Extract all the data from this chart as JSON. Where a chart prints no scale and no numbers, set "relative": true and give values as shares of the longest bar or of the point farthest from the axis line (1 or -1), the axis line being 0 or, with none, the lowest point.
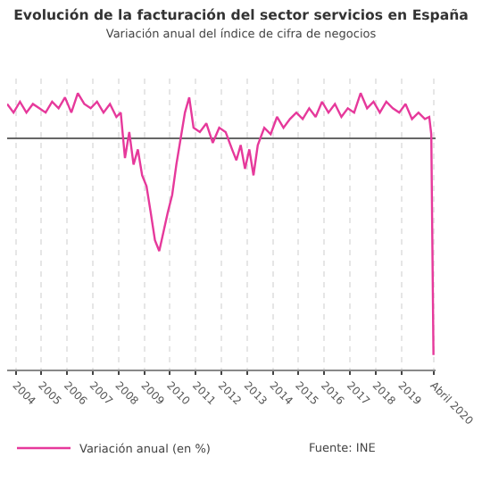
{
  "chart_data": {
    "type": "line",
    "title": "Evolución de la facturación del sector servicios en España",
    "subtitle": "Variación anual del índice de cifra de negocios",
    "relative": true,
    "grid": "x",
    "legend": "bottom",
    "marker": "none",
    "line_style": "solid",
    "annotations": [
      "Fuente: INE"
    ],
    "xlim": [
      "2003-09",
      "2020-05"
    ],
    "xticks": [
      {
        "value": "2004-01",
        "label": "2004"
      },
      {
        "value": "2005-01",
        "label": "2005"
      },
      {
        "value": "2006-01",
        "label": "2006"
      },
      {
        "value": "2007-01",
        "label": "2007"
      },
      {
        "value": "2008-01",
        "label": "2008"
      },
      {
        "value": "2009-01",
        "label": "2009"
      },
      {
        "value": "2010-01",
        "label": "2010"
      },
      {
        "value": "2011-01",
        "label": "2011"
      },
      {
        "value": "2012-01",
        "label": "2012"
      },
      {
        "value": "2013-01",
        "label": "2013"
      },
      {
        "value": "2014-01",
        "label": "2014"
      },
      {
        "value": "2015-01",
        "label": "2015"
      },
      {
        "value": "2016-01",
        "label": "2016"
      },
      {
        "value": "2017-01",
        "label": "2017"
      },
      {
        "value": "2018-01",
        "label": "2018"
      },
      {
        "value": "2019-01",
        "label": "2019"
      },
      {
        "value": "2020-04",
        "label": "Abril 2020"
      }
    ],
    "series": [
      {
        "name": "Variación anual (en %)",
        "color": "#e6399b",
        "x": [
          "2003-09",
          "2003-12",
          "2004-03",
          "2004-06",
          "2004-09",
          "2004-12",
          "2005-03",
          "2005-06",
          "2005-09",
          "2005-12",
          "2006-03",
          "2006-06",
          "2006-09",
          "2006-12",
          "2007-03",
          "2007-06",
          "2007-09",
          "2007-12",
          "2008-02",
          "2008-04",
          "2008-06",
          "2008-08",
          "2008-10",
          "2008-12",
          "2009-02",
          "2009-04",
          "2009-06",
          "2009-08",
          "2009-10",
          "2009-12",
          "2010-02",
          "2010-04",
          "2010-06",
          "2010-08",
          "2010-10",
          "2010-12",
          "2011-03",
          "2011-06",
          "2011-09",
          "2011-12",
          "2012-03",
          "2012-06",
          "2012-08",
          "2012-10",
          "2012-12",
          "2013-02",
          "2013-04",
          "2013-06",
          "2013-09",
          "2013-12",
          "2014-03",
          "2014-06",
          "2014-09",
          "2014-12",
          "2015-03",
          "2015-06",
          "2015-09",
          "2015-12",
          "2016-03",
          "2016-06",
          "2016-09",
          "2016-12",
          "2017-03",
          "2017-06",
          "2017-09",
          "2017-12",
          "2018-03",
          "2018-06",
          "2018-09",
          "2018-12",
          "2019-03",
          "2019-06",
          "2019-09",
          "2019-12",
          "2020-02",
          "2020-03",
          "2020-04"
        ],
        "values": [
          0.16,
          0.12,
          0.17,
          0.12,
          0.16,
          0.14,
          0.12,
          0.17,
          0.14,
          0.19,
          0.12,
          0.21,
          0.16,
          0.14,
          0.17,
          0.12,
          0.16,
          0.1,
          0.12,
          -0.09,
          0.03,
          -0.12,
          -0.05,
          -0.17,
          -0.22,
          -0.34,
          -0.47,
          -0.52,
          -0.43,
          -0.34,
          -0.26,
          -0.12,
          0.0,
          0.12,
          0.19,
          0.05,
          0.03,
          0.07,
          -0.02,
          0.05,
          0.03,
          -0.05,
          -0.1,
          -0.03,
          -0.14,
          -0.05,
          -0.17,
          -0.03,
          0.05,
          0.02,
          0.1,
          0.05,
          0.09,
          0.12,
          0.09,
          0.14,
          0.1,
          0.17,
          0.12,
          0.16,
          0.1,
          0.14,
          0.12,
          0.21,
          0.14,
          0.17,
          0.12,
          0.17,
          0.14,
          0.12,
          0.16,
          0.09,
          0.12,
          0.09,
          0.1,
          0.02,
          -1
        ]
      }
    ]
  }
}
